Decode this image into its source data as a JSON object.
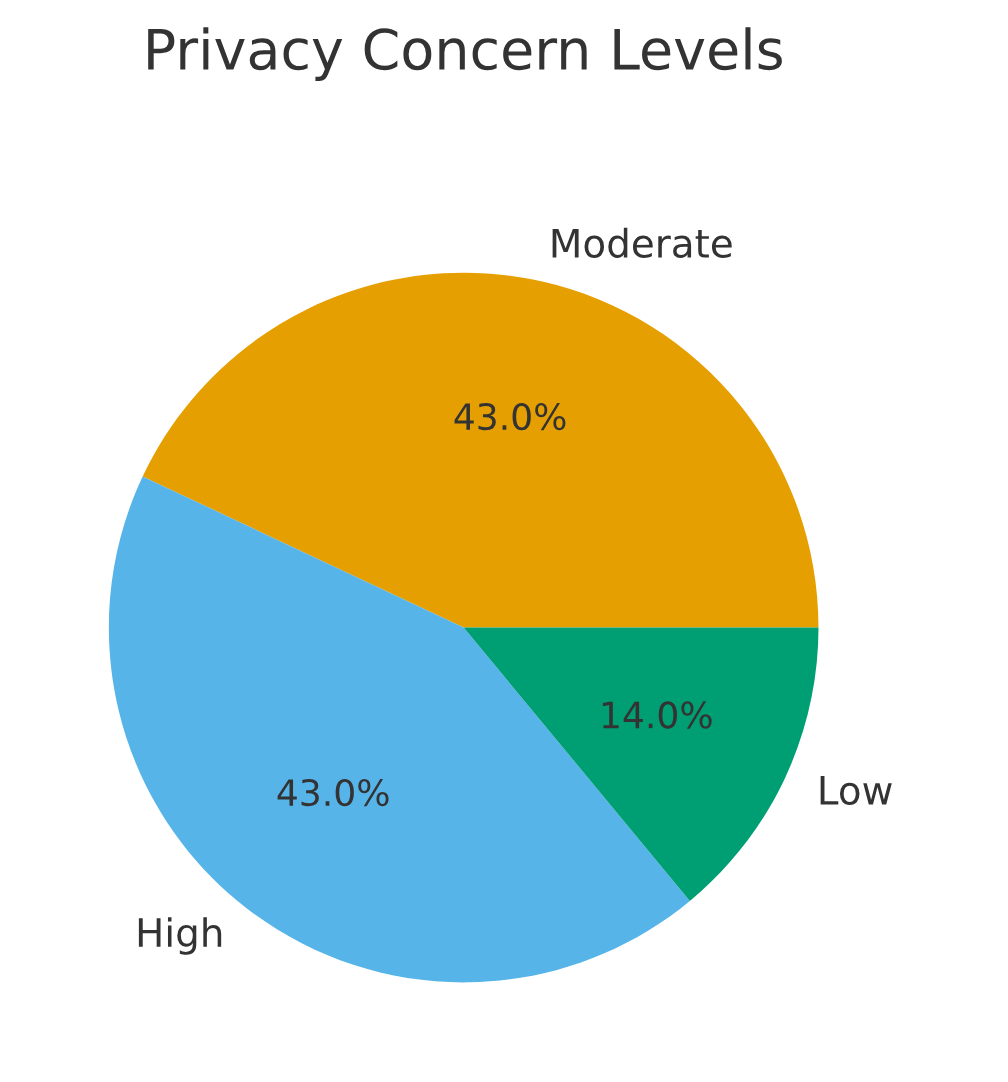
{
  "chart_data": {
    "type": "pie",
    "title": "Privacy Concern Levels",
    "categories": [
      "Moderate",
      "High",
      "Low"
    ],
    "values": [
      43.0,
      43.0,
      14.0
    ],
    "colors": [
      "#e69f00",
      "#56b4e9",
      "#009e73"
    ],
    "value_labels": [
      "43.0%",
      "43.0%",
      "14.0%"
    ]
  }
}
